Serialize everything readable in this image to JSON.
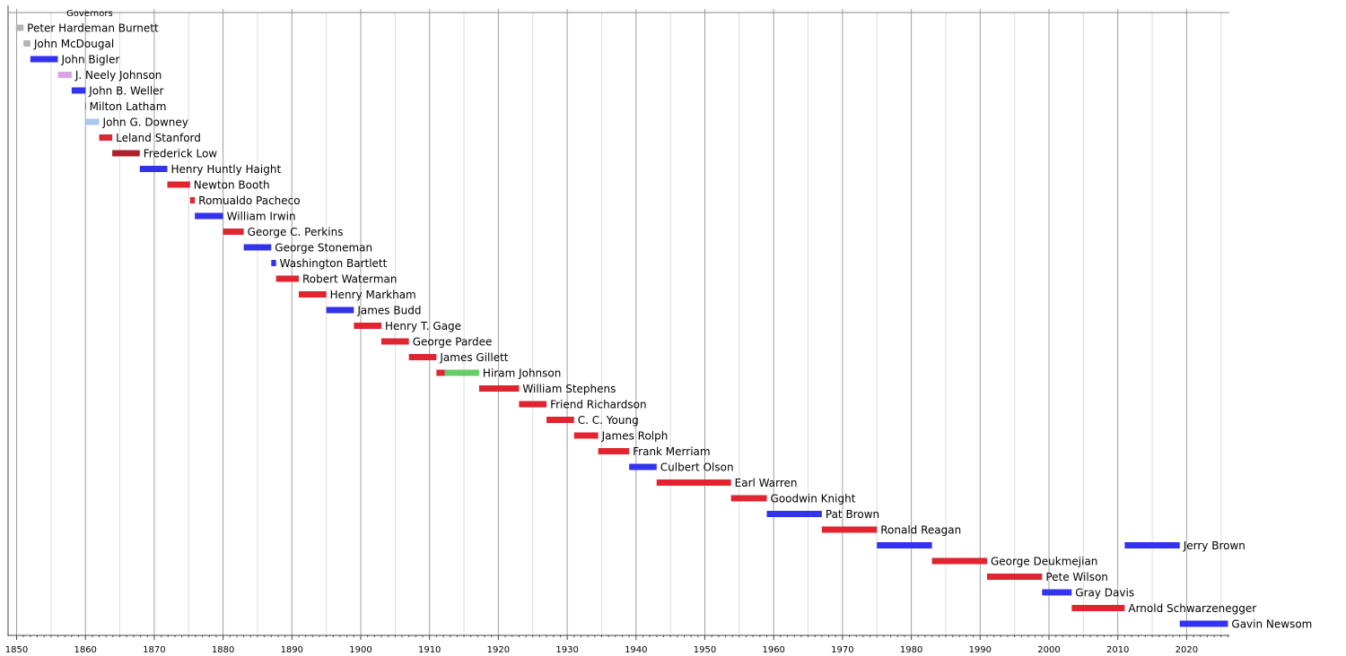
{
  "chart_data": {
    "type": "bar",
    "orientation": "horizontal-timeline",
    "group_label": "Governors",
    "xlim": [
      1850,
      2026
    ],
    "x_ticks": [
      1850,
      1860,
      1870,
      1880,
      1890,
      1900,
      1910,
      1920,
      1930,
      1940,
      1950,
      1960,
      1970,
      1980,
      1990,
      2000,
      2010,
      2020
    ],
    "x_tick_labels": [
      "1850",
      "1860",
      "1870",
      "1880",
      "1890",
      "1900",
      "1910",
      "1920",
      "1930",
      "1940",
      "1950",
      "1960",
      "1970",
      "1980",
      "1990",
      "2000",
      "2010",
      "2020"
    ],
    "grid": true,
    "colors": {
      "gray": "#b3b3b3",
      "blue": "#3333ee",
      "lightpurple": "#d9a3e6",
      "lightblue": "#a8c8f0",
      "red": "#e02430",
      "darkred": "#b0202b",
      "green": "#66cc66"
    },
    "series": [
      {
        "label": "Peter Hardeman Burnett",
        "row": 0,
        "segments": [
          {
            "start": 1849.9,
            "end": 1851.0,
            "color": "gray"
          }
        ]
      },
      {
        "label": "John McDougal",
        "row": 1,
        "segments": [
          {
            "start": 1851.0,
            "end": 1852.0,
            "color": "gray"
          }
        ]
      },
      {
        "label": "John Bigler",
        "row": 2,
        "segments": [
          {
            "start": 1852.0,
            "end": 1856.0,
            "color": "blue"
          }
        ]
      },
      {
        "label": "J. Neely Johnson",
        "row": 3,
        "segments": [
          {
            "start": 1856.0,
            "end": 1858.0,
            "color": "lightpurple"
          }
        ]
      },
      {
        "label": "John B. Weller",
        "row": 4,
        "segments": [
          {
            "start": 1858.0,
            "end": 1860.0,
            "color": "blue"
          }
        ]
      },
      {
        "label": "Milton Latham",
        "row": 5,
        "segments": [
          {
            "start": 1860.0,
            "end": 1860.05,
            "color": "blue"
          }
        ]
      },
      {
        "label": "John G. Downey",
        "row": 6,
        "segments": [
          {
            "start": 1860.05,
            "end": 1862.0,
            "color": "lightblue"
          }
        ]
      },
      {
        "label": "Leland Stanford",
        "row": 7,
        "segments": [
          {
            "start": 1862.0,
            "end": 1863.9,
            "color": "red"
          }
        ]
      },
      {
        "label": "Frederick Low",
        "row": 8,
        "segments": [
          {
            "start": 1863.9,
            "end": 1867.9,
            "color": "darkred"
          }
        ]
      },
      {
        "label": "Henry Huntly Haight",
        "row": 9,
        "segments": [
          {
            "start": 1867.9,
            "end": 1871.9,
            "color": "blue"
          }
        ]
      },
      {
        "label": "Newton Booth",
        "row": 10,
        "segments": [
          {
            "start": 1871.9,
            "end": 1875.2,
            "color": "red"
          }
        ]
      },
      {
        "label": "Romualdo Pacheco",
        "row": 11,
        "segments": [
          {
            "start": 1875.2,
            "end": 1875.9,
            "color": "red"
          }
        ]
      },
      {
        "label": "William Irwin",
        "row": 12,
        "segments": [
          {
            "start": 1875.9,
            "end": 1880.0,
            "color": "blue"
          }
        ]
      },
      {
        "label": "George C. Perkins",
        "row": 13,
        "segments": [
          {
            "start": 1880.0,
            "end": 1883.0,
            "color": "red"
          }
        ]
      },
      {
        "label": "George Stoneman",
        "row": 14,
        "segments": [
          {
            "start": 1883.0,
            "end": 1887.0,
            "color": "blue"
          }
        ]
      },
      {
        "label": "Washington Bartlett",
        "row": 15,
        "segments": [
          {
            "start": 1887.0,
            "end": 1887.7,
            "color": "blue"
          }
        ]
      },
      {
        "label": "Robert Waterman",
        "row": 16,
        "segments": [
          {
            "start": 1887.7,
            "end": 1891.0,
            "color": "red"
          }
        ]
      },
      {
        "label": "Henry Markham",
        "row": 17,
        "segments": [
          {
            "start": 1891.0,
            "end": 1895.0,
            "color": "red"
          }
        ]
      },
      {
        "label": "James Budd",
        "row": 18,
        "segments": [
          {
            "start": 1895.0,
            "end": 1899.0,
            "color": "blue"
          }
        ]
      },
      {
        "label": "Henry T. Gage",
        "row": 19,
        "segments": [
          {
            "start": 1899.0,
            "end": 1903.0,
            "color": "red"
          }
        ]
      },
      {
        "label": "George Pardee",
        "row": 20,
        "segments": [
          {
            "start": 1903.0,
            "end": 1907.0,
            "color": "red"
          }
        ]
      },
      {
        "label": "James Gillett",
        "row": 21,
        "segments": [
          {
            "start": 1907.0,
            "end": 1911.0,
            "color": "red"
          }
        ]
      },
      {
        "label": "Hiram Johnson",
        "row": 22,
        "segments": [
          {
            "start": 1911.0,
            "end": 1912.2,
            "color": "red"
          },
          {
            "start": 1912.2,
            "end": 1917.2,
            "color": "green"
          }
        ]
      },
      {
        "label": "William Stephens",
        "row": 23,
        "segments": [
          {
            "start": 1917.2,
            "end": 1923.0,
            "color": "red"
          }
        ]
      },
      {
        "label": "Friend Richardson",
        "row": 24,
        "segments": [
          {
            "start": 1923.0,
            "end": 1927.0,
            "color": "red"
          }
        ]
      },
      {
        "label": "C. C. Young",
        "row": 25,
        "segments": [
          {
            "start": 1927.0,
            "end": 1931.0,
            "color": "red"
          }
        ]
      },
      {
        "label": "James Rolph",
        "row": 26,
        "segments": [
          {
            "start": 1931.0,
            "end": 1934.5,
            "color": "red"
          }
        ]
      },
      {
        "label": "Frank Merriam",
        "row": 27,
        "segments": [
          {
            "start": 1934.5,
            "end": 1939.0,
            "color": "red"
          }
        ]
      },
      {
        "label": "Culbert Olson",
        "row": 28,
        "segments": [
          {
            "start": 1939.0,
            "end": 1943.0,
            "color": "blue"
          }
        ]
      },
      {
        "label": "Earl Warren",
        "row": 29,
        "segments": [
          {
            "start": 1943.0,
            "end": 1953.8,
            "color": "red"
          }
        ]
      },
      {
        "label": "Goodwin Knight",
        "row": 30,
        "segments": [
          {
            "start": 1953.8,
            "end": 1959.0,
            "color": "red"
          }
        ]
      },
      {
        "label": "Pat Brown",
        "row": 31,
        "segments": [
          {
            "start": 1959.0,
            "end": 1967.0,
            "color": "blue"
          }
        ]
      },
      {
        "label": "Ronald Reagan",
        "row": 32,
        "segments": [
          {
            "start": 1967.0,
            "end": 1975.0,
            "color": "red"
          }
        ]
      },
      {
        "label": "Jerry Brown",
        "row": 33,
        "segments": [
          {
            "start": 1975.0,
            "end": 1983.0,
            "color": "blue"
          },
          {
            "start": 2011.0,
            "end": 2019.0,
            "color": "blue"
          }
        ]
      },
      {
        "label": "George Deukmejian",
        "row": 34,
        "segments": [
          {
            "start": 1983.0,
            "end": 1991.0,
            "color": "red"
          }
        ]
      },
      {
        "label": "Pete Wilson",
        "row": 35,
        "segments": [
          {
            "start": 1991.0,
            "end": 1999.0,
            "color": "red"
          }
        ]
      },
      {
        "label": "Gray Davis",
        "row": 36,
        "segments": [
          {
            "start": 1999.0,
            "end": 2003.3,
            "color": "blue"
          }
        ]
      },
      {
        "label": "Arnold Schwarzenegger",
        "row": 37,
        "segments": [
          {
            "start": 2003.3,
            "end": 2011.0,
            "color": "red"
          }
        ]
      },
      {
        "label": "Gavin Newsom",
        "row": 38,
        "segments": [
          {
            "start": 2019.0,
            "end": 2026.0,
            "color": "blue"
          }
        ]
      }
    ]
  }
}
